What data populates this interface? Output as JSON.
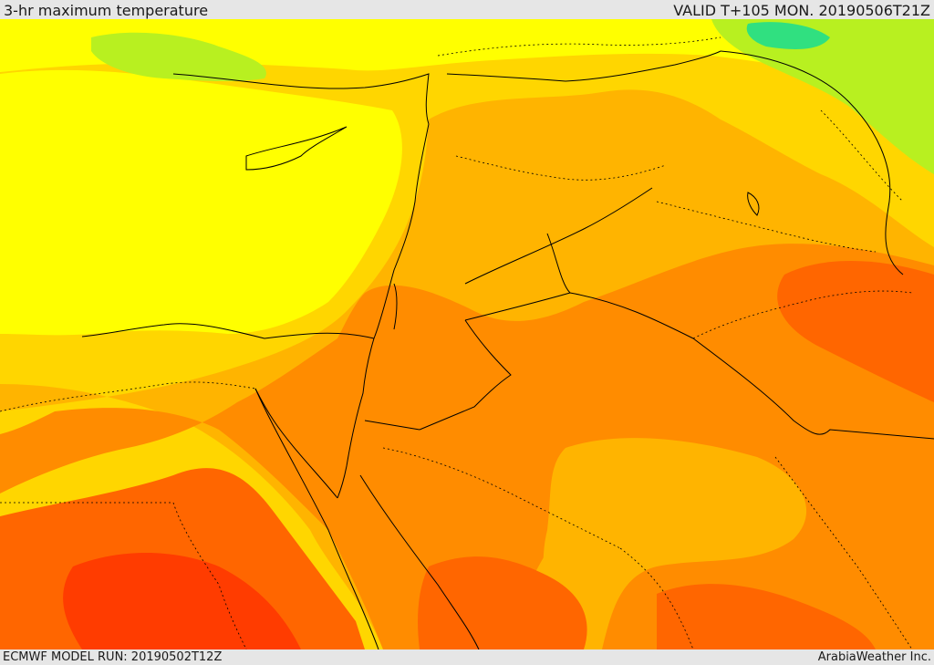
{
  "header": {
    "title": "3-hr maximum temperature",
    "valid": "VALID T+105 MON. 20190506T21Z"
  },
  "footer": {
    "model_run": "ECMWF MODEL RUN: 20190502T12Z",
    "credit": "ArabiaWeather Inc."
  },
  "map": {
    "field": "3-hr maximum temperature",
    "colors": {
      "cool_green": "#30e080",
      "light_green": "#b8f020",
      "yellow": "#ffff00",
      "yellow_orange": "#ffd600",
      "light_orange": "#ffb400",
      "orange": "#ff8c00",
      "dark_orange": "#ff6600",
      "red_orange": "#ff3c00",
      "borders": "#000000"
    }
  }
}
